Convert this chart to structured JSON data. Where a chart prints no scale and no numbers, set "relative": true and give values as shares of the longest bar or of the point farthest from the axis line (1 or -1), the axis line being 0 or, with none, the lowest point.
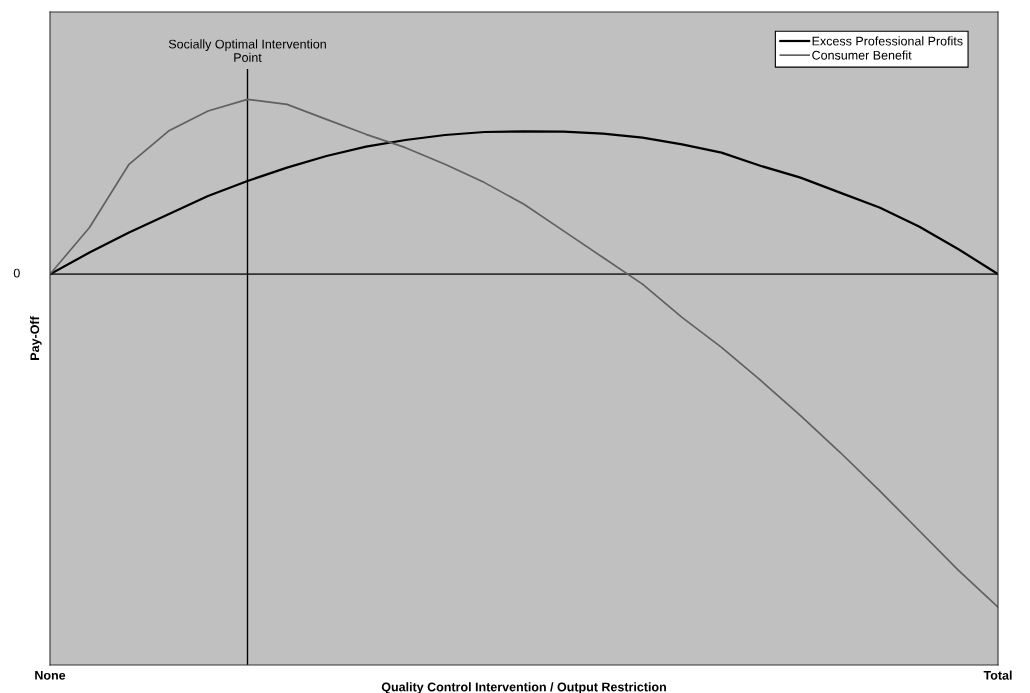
{
  "chart_data": {
    "type": "line",
    "relative": true,
    "xlabel": "Quality Control Intervention / Output Restriction",
    "ylabel": "Pay-Off",
    "categories": [
      "None",
      null,
      null,
      null,
      null,
      null,
      null,
      null,
      null,
      null,
      null,
      null,
      null,
      null,
      null,
      null,
      null,
      null,
      null,
      null,
      null,
      null,
      null,
      null,
      "Total"
    ],
    "series": [
      {
        "name": "Excess Professional Profits",
        "color": "#000000",
        "values": [
          0,
          0.065,
          0.125,
          0.18,
          0.235,
          0.28,
          0.32,
          0.355,
          0.383,
          0.403,
          0.418,
          0.427,
          0.429,
          0.428,
          0.422,
          0.41,
          0.39,
          0.365,
          0.325,
          0.29,
          0.245,
          0.2,
          0.143,
          0.075,
          0
        ]
      },
      {
        "name": "Consumer Benefit",
        "color": "#606060",
        "values": [
          0,
          0.14,
          0.33,
          0.43,
          0.49,
          0.525,
          0.51,
          0.465,
          0.42,
          0.38,
          0.33,
          0.275,
          0.21,
          0.13,
          0.05,
          -0.03,
          -0.13,
          -0.22,
          -0.32,
          -0.425,
          -0.535,
          -0.65,
          -0.77,
          -0.89,
          -1.0
        ]
      }
    ],
    "annotations": [
      "0",
      "Socially Optimal Intervention\nPoint"
    ],
    "legend": "top right",
    "marker": "none",
    "line_style": "solid"
  }
}
